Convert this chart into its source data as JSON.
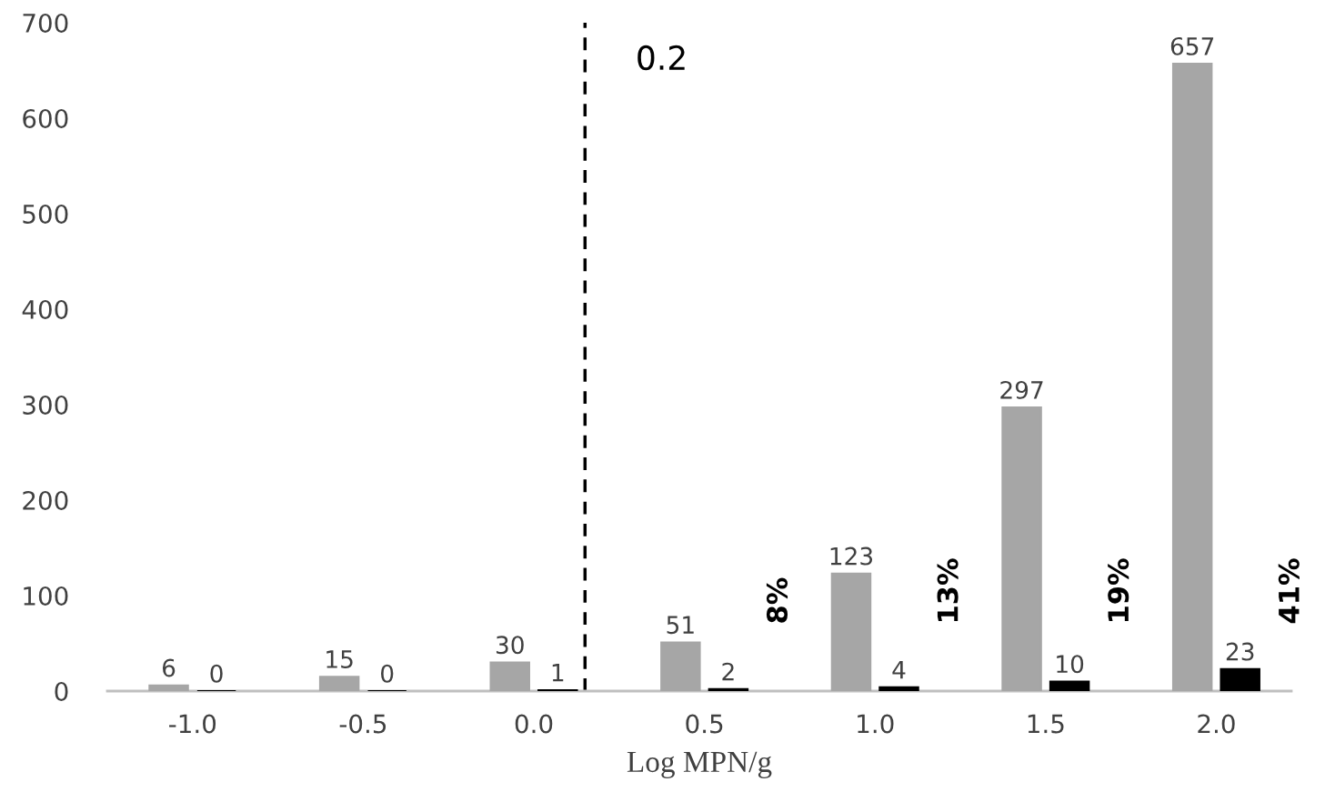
{
  "chart_data": {
    "type": "bar",
    "xlabel": "Log MPN/g",
    "x": [
      -1.0,
      -0.5,
      0.0,
      0.5,
      1.0,
      1.5,
      2.0
    ],
    "series": [
      {
        "color": "#a6a6a6",
        "values": [
          6,
          15,
          30,
          51,
          123,
          297,
          657
        ]
      },
      {
        "color": "#000000",
        "values": [
          0,
          0,
          1,
          2,
          4,
          10,
          23
        ]
      }
    ],
    "data_labels": true,
    "xlim": [
      -1.25,
      2.22
    ],
    "xticks": [
      {
        "value": -1.0,
        "label": "-1.0"
      },
      {
        "value": -0.5,
        "label": "-0.5"
      },
      {
        "value": 0.0,
        "label": "0.0"
      },
      {
        "value": 0.5,
        "label": "0.5"
      },
      {
        "value": 1.0,
        "label": "1.0"
      },
      {
        "value": 1.5,
        "label": "1.5"
      },
      {
        "value": 2.0,
        "label": "2.0"
      }
    ],
    "ylim": [
      0,
      700
    ],
    "yticks": [
      0,
      100,
      200,
      300,
      400,
      500,
      600,
      700
    ],
    "ref_lines": [
      {
        "axis": "x",
        "value": 0.15,
        "label": "0.2",
        "color": "#000000",
        "line_style": "dashed"
      }
    ],
    "annotations": [
      "8%",
      "13%",
      "19%",
      "41%"
    ],
    "grid": false,
    "legend": false
  }
}
